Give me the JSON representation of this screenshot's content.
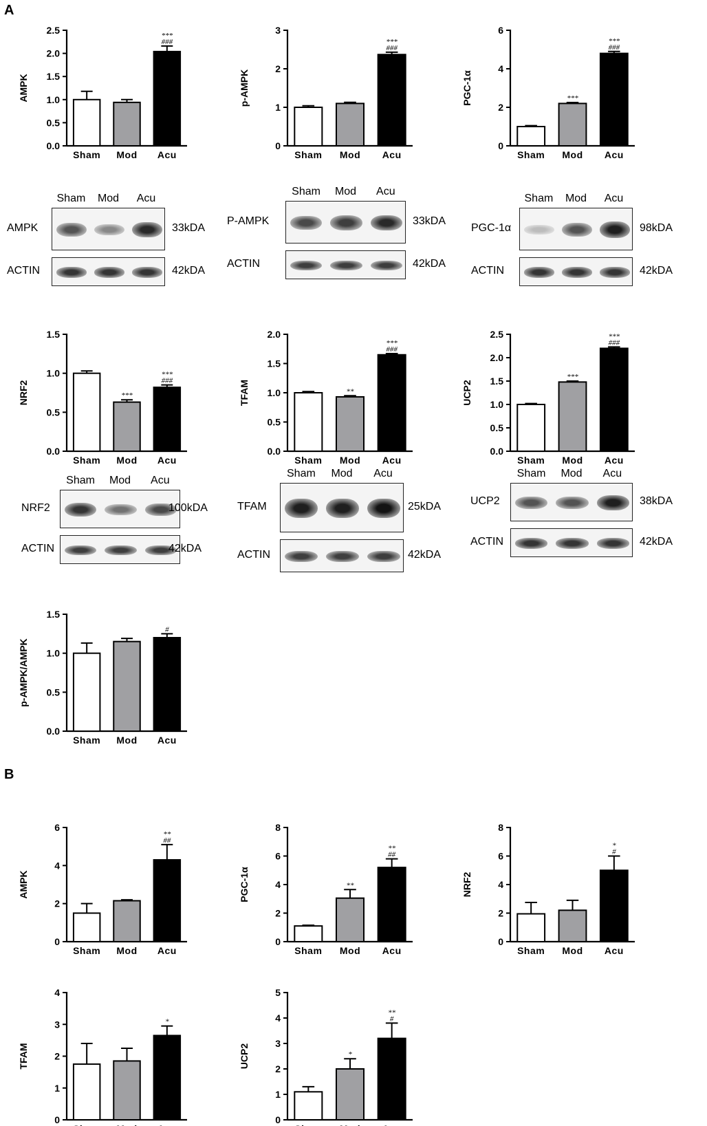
{
  "panel_labels": {
    "A": "A",
    "B": "B"
  },
  "chart_data": [
    {
      "id": "a-ampk",
      "type": "bar",
      "categories": [
        "Sham",
        "Mod",
        "Acu"
      ],
      "values": [
        1.0,
        0.94,
        2.04
      ],
      "errors": [
        0.18,
        0.06,
        0.12
      ],
      "annotations": [
        "",
        "",
        "***\n###"
      ],
      "ylabel": "AMPK",
      "ylim": [
        0,
        2.5
      ],
      "yticks": [
        "0.0",
        "0.5",
        "1.0",
        "1.5",
        "2.0",
        "2.5"
      ],
      "colors": [
        "#ffffff",
        "#a0a0a3",
        "#000000"
      ]
    },
    {
      "id": "a-pampk",
      "type": "bar",
      "categories": [
        "Sham",
        "Mod",
        "Acu"
      ],
      "values": [
        1.0,
        1.1,
        2.37
      ],
      "errors": [
        0.04,
        0.03,
        0.06
      ],
      "annotations": [
        "",
        "",
        "***\n###"
      ],
      "ylabel": "p-AMPK",
      "ylim": [
        0,
        3
      ],
      "yticks": [
        "0",
        "1",
        "2",
        "3"
      ],
      "colors": [
        "#ffffff",
        "#a0a0a3",
        "#000000"
      ]
    },
    {
      "id": "a-pgc",
      "type": "bar",
      "categories": [
        "Sham",
        "Mod",
        "Acu"
      ],
      "values": [
        1.0,
        2.2,
        4.8
      ],
      "errors": [
        0.05,
        0.05,
        0.1
      ],
      "annotations": [
        "",
        "***",
        "***\n###"
      ],
      "ylabel": "PGC-1α",
      "ylim": [
        0,
        6
      ],
      "yticks": [
        "0",
        "2",
        "4",
        "6"
      ],
      "colors": [
        "#ffffff",
        "#a0a0a3",
        "#000000"
      ]
    },
    {
      "id": "a-nrf2",
      "type": "bar",
      "categories": [
        "Sham",
        "Mod",
        "Acu"
      ],
      "values": [
        1.0,
        0.63,
        0.82
      ],
      "errors": [
        0.03,
        0.03,
        0.03
      ],
      "annotations": [
        "",
        "***",
        "***\n###"
      ],
      "ylabel": "NRF2",
      "ylim": [
        0,
        1.5
      ],
      "yticks": [
        "0.0",
        "0.5",
        "1.0",
        "1.5"
      ],
      "colors": [
        "#ffffff",
        "#a0a0a3",
        "#000000"
      ]
    },
    {
      "id": "a-tfam",
      "type": "bar",
      "categories": [
        "Sham",
        "Mod",
        "Acu"
      ],
      "values": [
        1.0,
        0.93,
        1.65
      ],
      "errors": [
        0.02,
        0.02,
        0.02
      ],
      "annotations": [
        "",
        "**",
        "***\n###"
      ],
      "ylabel": "TFAM",
      "ylim": [
        0,
        2.0
      ],
      "yticks": [
        "0.0",
        "0.5",
        "1.0",
        "1.5",
        "2.0"
      ],
      "colors": [
        "#ffffff",
        "#a0a0a3",
        "#000000"
      ]
    },
    {
      "id": "a-ucp2",
      "type": "bar",
      "categories": [
        "Sham",
        "Mod",
        "Acu"
      ],
      "values": [
        1.0,
        1.48,
        2.2
      ],
      "errors": [
        0.02,
        0.02,
        0.03
      ],
      "annotations": [
        "",
        "***",
        "***\n###"
      ],
      "ylabel": "UCP2",
      "ylim": [
        0,
        2.5
      ],
      "yticks": [
        "0.0",
        "0.5",
        "1.0",
        "1.5",
        "2.0",
        "2.5"
      ],
      "colors": [
        "#ffffff",
        "#a0a0a3",
        "#000000"
      ]
    },
    {
      "id": "a-ratio",
      "type": "bar",
      "categories": [
        "Sham",
        "Mod",
        "Acu"
      ],
      "values": [
        1.0,
        1.15,
        1.2
      ],
      "errors": [
        0.13,
        0.04,
        0.05
      ],
      "annotations": [
        "",
        "",
        "#"
      ],
      "ylabel": "p-AMPK/AMPK",
      "ylim": [
        0,
        1.5
      ],
      "yticks": [
        "0.0",
        "0.5",
        "1.0",
        "1.5"
      ],
      "colors": [
        "#ffffff",
        "#a0a0a3",
        "#000000"
      ]
    },
    {
      "id": "b-ampk",
      "type": "bar",
      "categories": [
        "Sham",
        "Mod",
        "Acu"
      ],
      "values": [
        1.5,
        2.15,
        4.3
      ],
      "errors": [
        0.5,
        0.05,
        0.8
      ],
      "annotations": [
        "",
        "",
        "**\n##"
      ],
      "ylabel": "AMPK",
      "ylim": [
        0,
        6
      ],
      "yticks": [
        "0",
        "2",
        "4",
        "6"
      ],
      "colors": [
        "#ffffff",
        "#a0a0a3",
        "#000000"
      ]
    },
    {
      "id": "b-pgc",
      "type": "bar",
      "categories": [
        "Sham",
        "Mod",
        "Acu"
      ],
      "values": [
        1.1,
        3.05,
        5.2
      ],
      "errors": [
        0.05,
        0.6,
        0.6
      ],
      "annotations": [
        "",
        "**",
        "**\n##"
      ],
      "ylabel": "PGC-1α",
      "ylim": [
        0,
        8
      ],
      "yticks": [
        "0",
        "2",
        "4",
        "6",
        "8"
      ],
      "colors": [
        "#ffffff",
        "#a0a0a3",
        "#000000"
      ]
    },
    {
      "id": "b-nrf2",
      "type": "bar",
      "categories": [
        "Sham",
        "Mod",
        "Acu"
      ],
      "values": [
        1.95,
        2.2,
        5.0
      ],
      "errors": [
        0.8,
        0.7,
        1.0
      ],
      "annotations": [
        "",
        "",
        "*\n#"
      ],
      "ylabel": "NRF2",
      "ylim": [
        0,
        8
      ],
      "yticks": [
        "0",
        "2",
        "4",
        "6",
        "8"
      ],
      "colors": [
        "#ffffff",
        "#a0a0a3",
        "#000000"
      ]
    },
    {
      "id": "b-tfam",
      "type": "bar",
      "categories": [
        "Sham",
        "Mod",
        "Acu"
      ],
      "values": [
        1.75,
        1.85,
        2.65
      ],
      "errors": [
        0.65,
        0.4,
        0.3
      ],
      "annotations": [
        "",
        "",
        "*"
      ],
      "ylabel": "TFAM",
      "ylim": [
        0,
        4
      ],
      "yticks": [
        "0",
        "1",
        "2",
        "3",
        "4"
      ],
      "colors": [
        "#ffffff",
        "#a0a0a3",
        "#000000"
      ]
    },
    {
      "id": "b-ucp2",
      "type": "bar",
      "categories": [
        "Sham",
        "Mod",
        "Acu"
      ],
      "values": [
        1.1,
        2.0,
        3.2
      ],
      "errors": [
        0.2,
        0.4,
        0.6
      ],
      "annotations": [
        "",
        "*",
        "**\n#"
      ],
      "ylabel": "UCP2",
      "ylim": [
        0,
        5
      ],
      "yticks": [
        "0",
        "1",
        "2",
        "3",
        "4",
        "5"
      ],
      "colors": [
        "#ffffff",
        "#a0a0a3",
        "#000000"
      ]
    }
  ],
  "blots": [
    {
      "id": "blot-ampk",
      "lanes": [
        "Sham",
        "Mod",
        "Acu"
      ],
      "targets": [
        {
          "label": "AMPK",
          "kda": "33kDA"
        },
        {
          "label": "ACTIN",
          "kda": "42kDA"
        }
      ],
      "intensity": [
        [
          0.7,
          0.45,
          0.9
        ],
        [
          0.85,
          0.85,
          0.85
        ]
      ]
    },
    {
      "id": "blot-pampk",
      "lanes": [
        "Sham",
        "Mod",
        "Acu"
      ],
      "targets": [
        {
          "label": "P-AMPK",
          "kda": "33kDA"
        },
        {
          "label": "ACTIN",
          "kda": "42kDA"
        }
      ],
      "intensity": [
        [
          0.75,
          0.8,
          0.9
        ],
        [
          0.8,
          0.8,
          0.8
        ]
      ]
    },
    {
      "id": "blot-pgc",
      "lanes": [
        "Sham",
        "Mod",
        "Acu"
      ],
      "targets": [
        {
          "label": "PGC-1α",
          "kda": "98kDA"
        },
        {
          "label": "ACTIN",
          "kda": "42kDA"
        }
      ],
      "intensity": [
        [
          0.2,
          0.7,
          0.95
        ],
        [
          0.85,
          0.85,
          0.85
        ]
      ]
    },
    {
      "id": "blot-nrf2",
      "lanes": [
        "Sham",
        "Mod",
        "Acu"
      ],
      "targets": [
        {
          "label": "NRF2",
          "kda": "100kDA"
        },
        {
          "label": "ACTIN",
          "kda": "42kDA"
        }
      ],
      "intensity": [
        [
          0.85,
          0.55,
          0.75
        ],
        [
          0.8,
          0.8,
          0.8
        ]
      ]
    },
    {
      "id": "blot-tfam",
      "lanes": [
        "Sham",
        "Mod",
        "Acu"
      ],
      "targets": [
        {
          "label": "TFAM",
          "kda": "25kDA"
        },
        {
          "label": "ACTIN",
          "kda": "42kDA"
        }
      ],
      "intensity": [
        [
          0.95,
          0.95,
          1.0
        ],
        [
          0.8,
          0.8,
          0.8
        ]
      ]
    },
    {
      "id": "blot-ucp2",
      "lanes": [
        "Sham",
        "Mod",
        "Acu"
      ],
      "targets": [
        {
          "label": "UCP2",
          "kda": "38kDA"
        },
        {
          "label": "ACTIN",
          "kda": "42kDA"
        }
      ],
      "intensity": [
        [
          0.7,
          0.7,
          0.95
        ],
        [
          0.85,
          0.85,
          0.85
        ]
      ]
    }
  ]
}
